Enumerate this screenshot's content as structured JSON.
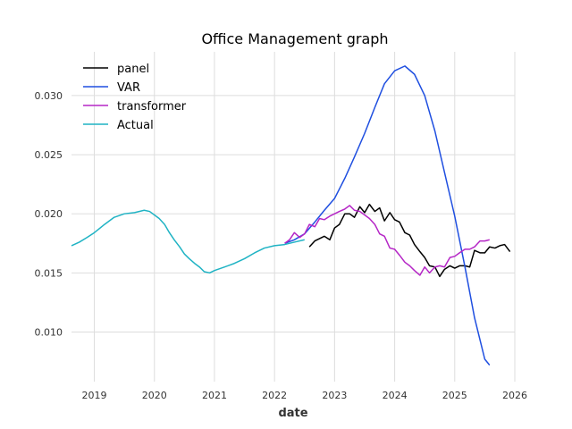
{
  "chart_data": {
    "type": "line",
    "title": "Office Management graph",
    "xlabel": "date",
    "ylabel": "",
    "xlim": [
      2018.62,
      2026.0
    ],
    "ylim": [
      0.0058,
      0.0337
    ],
    "x_ticks": [
      2019,
      2020,
      2021,
      2022,
      2023,
      2024,
      2025,
      2026
    ],
    "x_tick_labels": [
      "2019",
      "2020",
      "2021",
      "2022",
      "2023",
      "2024",
      "2025",
      "2026"
    ],
    "y_ticks": [
      0.01,
      0.015,
      0.02,
      0.025,
      0.03
    ],
    "y_tick_labels": [
      "0.010",
      "0.015",
      "0.020",
      "0.025",
      "0.030"
    ],
    "grid": true,
    "legend_position": "top-left",
    "series": [
      {
        "name": "panel",
        "color": "#000000",
        "points": [
          [
            2022.58,
            0.0172
          ],
          [
            2022.67,
            0.0177
          ],
          [
            2022.75,
            0.0179
          ],
          [
            2022.83,
            0.0181
          ],
          [
            2022.92,
            0.0178
          ],
          [
            2023.0,
            0.0188
          ],
          [
            2023.08,
            0.0191
          ],
          [
            2023.17,
            0.02
          ],
          [
            2023.25,
            0.02
          ],
          [
            2023.33,
            0.0197
          ],
          [
            2023.42,
            0.0206
          ],
          [
            2023.5,
            0.0201
          ],
          [
            2023.58,
            0.0208
          ],
          [
            2023.67,
            0.0202
          ],
          [
            2023.75,
            0.0205
          ],
          [
            2023.83,
            0.0194
          ],
          [
            2023.92,
            0.0201
          ],
          [
            2024.0,
            0.0195
          ],
          [
            2024.08,
            0.0193
          ],
          [
            2024.17,
            0.0184
          ],
          [
            2024.25,
            0.0182
          ],
          [
            2024.33,
            0.0174
          ],
          [
            2024.42,
            0.0168
          ],
          [
            2024.5,
            0.0163
          ],
          [
            2024.58,
            0.0156
          ],
          [
            2024.67,
            0.0155
          ],
          [
            2024.75,
            0.0147
          ],
          [
            2024.83,
            0.0153
          ],
          [
            2024.92,
            0.0156
          ],
          [
            2025.0,
            0.0154
          ],
          [
            2025.08,
            0.0156
          ],
          [
            2025.17,
            0.0156
          ],
          [
            2025.25,
            0.0155
          ],
          [
            2025.33,
            0.0169
          ],
          [
            2025.42,
            0.0167
          ],
          [
            2025.5,
            0.0167
          ],
          [
            2025.58,
            0.0172
          ],
          [
            2025.67,
            0.0171
          ],
          [
            2025.75,
            0.0173
          ],
          [
            2025.83,
            0.0174
          ],
          [
            2025.92,
            0.0168
          ]
        ]
      },
      {
        "name": "VAR",
        "color": "#1f4fe0",
        "points": [
          [
            2022.17,
            0.0175
          ],
          [
            2022.33,
            0.0178
          ],
          [
            2022.5,
            0.0183
          ],
          [
            2022.67,
            0.0193
          ],
          [
            2022.83,
            0.0203
          ],
          [
            2023.0,
            0.0213
          ],
          [
            2023.17,
            0.023
          ],
          [
            2023.33,
            0.0248
          ],
          [
            2023.5,
            0.0268
          ],
          [
            2023.67,
            0.029
          ],
          [
            2023.83,
            0.031
          ],
          [
            2024.0,
            0.0321
          ],
          [
            2024.17,
            0.0325
          ],
          [
            2024.33,
            0.0318
          ],
          [
            2024.5,
            0.03
          ],
          [
            2024.67,
            0.027
          ],
          [
            2024.83,
            0.0235
          ],
          [
            2025.0,
            0.0198
          ],
          [
            2025.17,
            0.0155
          ],
          [
            2025.33,
            0.0112
          ],
          [
            2025.5,
            0.0077
          ],
          [
            2025.58,
            0.0072
          ]
        ]
      },
      {
        "name": "transformer",
        "color": "#b526c6",
        "points": [
          [
            2022.17,
            0.0175
          ],
          [
            2022.25,
            0.0178
          ],
          [
            2022.33,
            0.0184
          ],
          [
            2022.42,
            0.018
          ],
          [
            2022.5,
            0.0183
          ],
          [
            2022.58,
            0.0191
          ],
          [
            2022.67,
            0.0189
          ],
          [
            2022.75,
            0.0196
          ],
          [
            2022.83,
            0.0195
          ],
          [
            2022.92,
            0.0198
          ],
          [
            2023.0,
            0.02
          ],
          [
            2023.08,
            0.0202
          ],
          [
            2023.17,
            0.0204
          ],
          [
            2023.25,
            0.0207
          ],
          [
            2023.33,
            0.0203
          ],
          [
            2023.42,
            0.0202
          ],
          [
            2023.5,
            0.0199
          ],
          [
            2023.58,
            0.0196
          ],
          [
            2023.67,
            0.0191
          ],
          [
            2023.75,
            0.0183
          ],
          [
            2023.83,
            0.0181
          ],
          [
            2023.92,
            0.0171
          ],
          [
            2024.0,
            0.017
          ],
          [
            2024.08,
            0.0165
          ],
          [
            2024.17,
            0.0159
          ],
          [
            2024.25,
            0.0156
          ],
          [
            2024.33,
            0.0152
          ],
          [
            2024.42,
            0.0148
          ],
          [
            2024.5,
            0.0155
          ],
          [
            2024.58,
            0.015
          ],
          [
            2024.67,
            0.0155
          ],
          [
            2024.75,
            0.0156
          ],
          [
            2024.83,
            0.0155
          ],
          [
            2024.92,
            0.0163
          ],
          [
            2025.0,
            0.0164
          ],
          [
            2025.08,
            0.0167
          ],
          [
            2025.17,
            0.017
          ],
          [
            2025.25,
            0.017
          ],
          [
            2025.33,
            0.0172
          ],
          [
            2025.42,
            0.0177
          ],
          [
            2025.5,
            0.0177
          ],
          [
            2025.58,
            0.0178
          ]
        ]
      },
      {
        "name": "Actual",
        "color": "#1fb3c4",
        "points": [
          [
            2018.62,
            0.0173
          ],
          [
            2018.75,
            0.0176
          ],
          [
            2018.88,
            0.018
          ],
          [
            2019.0,
            0.0184
          ],
          [
            2019.17,
            0.0191
          ],
          [
            2019.33,
            0.0197
          ],
          [
            2019.5,
            0.02
          ],
          [
            2019.67,
            0.0201
          ],
          [
            2019.83,
            0.0203
          ],
          [
            2019.92,
            0.0202
          ],
          [
            2020.0,
            0.0199
          ],
          [
            2020.08,
            0.0196
          ],
          [
            2020.17,
            0.0191
          ],
          [
            2020.25,
            0.0184
          ],
          [
            2020.33,
            0.0178
          ],
          [
            2020.42,
            0.0172
          ],
          [
            2020.5,
            0.0166
          ],
          [
            2020.58,
            0.0162
          ],
          [
            2020.67,
            0.0158
          ],
          [
            2020.75,
            0.0155
          ],
          [
            2020.83,
            0.0151
          ],
          [
            2020.92,
            0.015
          ],
          [
            2021.0,
            0.0152
          ],
          [
            2021.17,
            0.0155
          ],
          [
            2021.33,
            0.0158
          ],
          [
            2021.5,
            0.0162
          ],
          [
            2021.67,
            0.0167
          ],
          [
            2021.83,
            0.0171
          ],
          [
            2022.0,
            0.0173
          ],
          [
            2022.17,
            0.0174
          ],
          [
            2022.33,
            0.0176
          ],
          [
            2022.5,
            0.0178
          ]
        ]
      }
    ]
  }
}
